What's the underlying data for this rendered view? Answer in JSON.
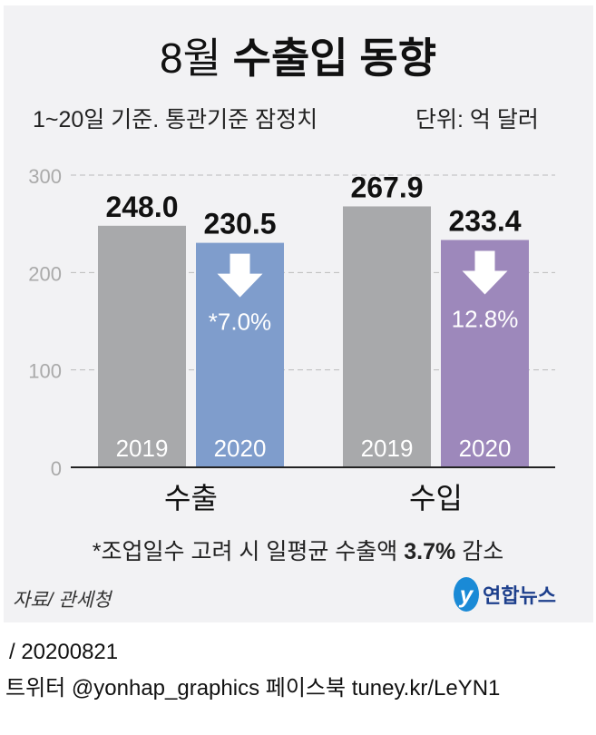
{
  "title_light": "8월",
  "title_bold": "수출입 동향",
  "subtitle": "1~20일 기준. 통관기준 잠정치",
  "unit": "단위: 억 달러",
  "note_pre": "*조업일수 고려 시 일평균 수출액 ",
  "note_bold": "3.7%",
  "note_post": " 감소",
  "source": "자료/ 관세청",
  "logo_text": "연합뉴스",
  "date": "/ 20200821",
  "social": "트위터 @yonhap_graphics  페이스북 tuney.kr/LeYN1",
  "colors": {
    "y2019": "#a8a9ab",
    "export2020": "#7f9dcc",
    "import2020": "#9d88bb",
    "bg": "#f2f2f4"
  },
  "chart_data": {
    "type": "bar",
    "title": "8월 수출입 동향",
    "categories": [
      "수출",
      "수입"
    ],
    "series": [
      {
        "name": "2019",
        "values": [
          248.0,
          267.9
        ]
      },
      {
        "name": "2020",
        "values": [
          230.5,
          233.4
        ]
      }
    ],
    "value_labels": [
      [
        "248.0",
        "230.5"
      ],
      [
        "267.9",
        "233.4"
      ]
    ],
    "change_labels": [
      "*7.0%",
      "12.8%"
    ],
    "ylim": [
      0,
      300
    ],
    "yticks": [
      "0",
      "100",
      "200",
      "300"
    ],
    "grid": true
  }
}
